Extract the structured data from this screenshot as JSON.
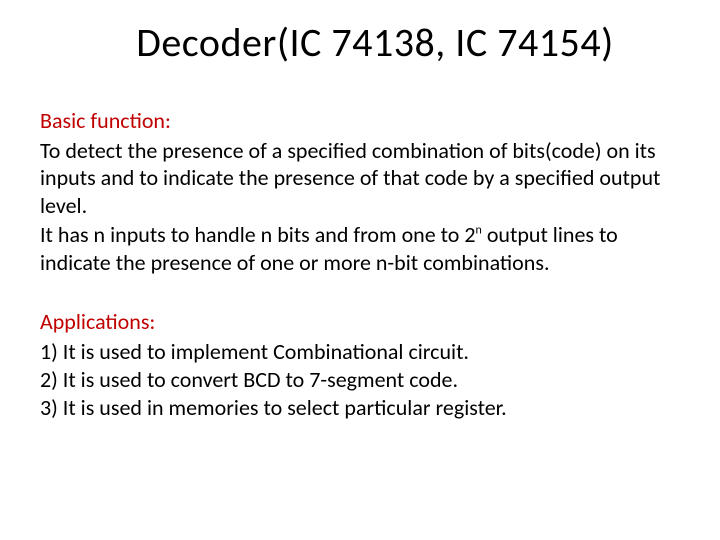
{
  "title": "Decoder(IC 74138, IC 74154)",
  "basic_function": {
    "heading": "Basic function:",
    "para1": "To detect the presence of a specified combination of bits(code) on its inputs and to indicate the presence of that code by a specified output level.",
    "para2_pre": "It has n inputs to handle n bits and from one to 2",
    "para2_sup": "n",
    "para2_post": " output lines to indicate the presence of one or more n-bit combinations."
  },
  "applications": {
    "heading": "Applications:",
    "items": [
      "1) It is used to implement Combinational circuit.",
      "2) It is used to convert BCD to 7-segment code.",
      "3) It is used in memories to select particular register."
    ]
  },
  "colors": {
    "heading_color": "#c00000",
    "text_color": "#000000",
    "background": "#ffffff"
  }
}
